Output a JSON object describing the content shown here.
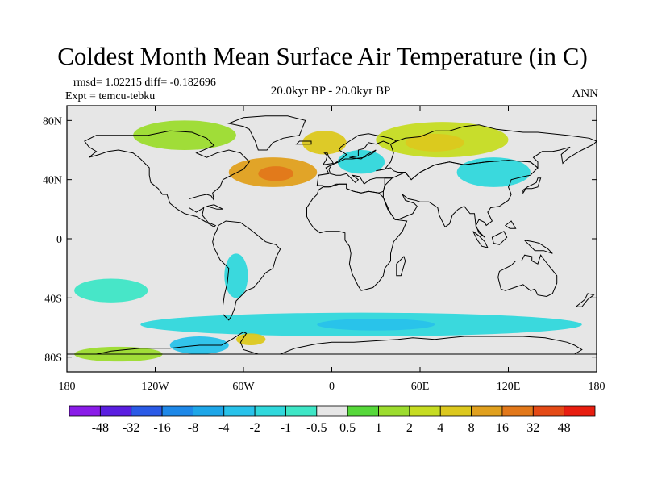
{
  "title": "Coldest Month Mean Surface Air Temperature (in C)",
  "stats_line": "rmsd= 1.02215 diff= -0.182696",
  "expt_line": "Expt = temcu-tebku",
  "subtitle": "20.0kyr BP - 20.0kyr BP",
  "season": "ANN",
  "chart_data": {
    "type": "heatmap",
    "title": "Coldest Month Mean Surface Air Temperature (in C)",
    "subtitle": "20.0kyr BP - 20.0kyr BP",
    "projection": "cylindrical-equidistant",
    "x_range": [
      -180,
      180
    ],
    "y_range": [
      -90,
      90
    ],
    "x_ticks": [
      {
        "value": -180,
        "label": "180"
      },
      {
        "value": -120,
        "label": "120W"
      },
      {
        "value": -60,
        "label": "60W"
      },
      {
        "value": 0,
        "label": "0"
      },
      {
        "value": 60,
        "label": "60E"
      },
      {
        "value": 120,
        "label": "120E"
      },
      {
        "value": 180,
        "label": "180"
      }
    ],
    "y_ticks": [
      {
        "value": 80,
        "label": "80N"
      },
      {
        "value": 40,
        "label": "40N"
      },
      {
        "value": 0,
        "label": "0"
      },
      {
        "value": -40,
        "label": "40S"
      },
      {
        "value": -80,
        "label": "80S"
      }
    ],
    "colorbar": {
      "levels": [
        "-48",
        "-32",
        "-16",
        "-8",
        "-4",
        "-2",
        "-1",
        "-0.5",
        "0.5",
        "1",
        "2",
        "4",
        "8",
        "16",
        "32",
        "48"
      ],
      "colors": [
        "#8a1ce8",
        "#5a1ee0",
        "#2a5ae6",
        "#1e88e8",
        "#1ea6e8",
        "#28c2ea",
        "#30d8dc",
        "#3ee6c6",
        "#e6e6e6",
        "#56d83a",
        "#9cdc2e",
        "#c6dc22",
        "#dcc81e",
        "#e0a01e",
        "#e2781a",
        "#e44a16",
        "#e81e10"
      ]
    },
    "regions": [
      {
        "label": "North Atlantic warm anomaly",
        "bin": 13,
        "lon": -40,
        "lat": 45,
        "dlon": 30,
        "dlat": 10
      },
      {
        "label": "North Atlantic warm anomaly core",
        "bin": 14,
        "lon": -38,
        "lat": 44,
        "dlon": 12,
        "dlat": 5
      },
      {
        "label": "Greenland Sea warm anomaly",
        "bin": 12,
        "lon": -5,
        "lat": 65,
        "dlon": 15,
        "dlat": 8
      },
      {
        "label": "Siberia warm anomaly",
        "bin": 11,
        "lon": 75,
        "lat": 67,
        "dlon": 45,
        "dlat": 12
      },
      {
        "label": "Siberia warm anomaly core",
        "bin": 12,
        "lon": 70,
        "lat": 65,
        "dlon": 20,
        "dlat": 6
      },
      {
        "label": "Arctic Canada warm anomaly",
        "bin": 10,
        "lon": -100,
        "lat": 70,
        "dlon": 35,
        "dlat": 10
      },
      {
        "label": "Europe cold anomaly",
        "bin": 6,
        "lon": 20,
        "lat": 52,
        "dlon": 16,
        "dlat": 8
      },
      {
        "label": "East Asia cold anomaly",
        "bin": 6,
        "lon": 110,
        "lat": 45,
        "dlon": 25,
        "dlat": 10
      },
      {
        "label": "Southern Ocean cold anomaly",
        "bin": 6,
        "lon": 20,
        "lat": -58,
        "dlon": 150,
        "dlat": 8
      },
      {
        "label": "Southern Ocean cold anomaly core",
        "bin": 5,
        "lon": 30,
        "lat": -58,
        "dlon": 40,
        "dlat": 4
      },
      {
        "label": "South Pacific cold anomaly",
        "bin": 7,
        "lon": -150,
        "lat": -35,
        "dlon": 25,
        "dlat": 8
      },
      {
        "label": "Antarctic warm anomaly",
        "bin": 10,
        "lon": -145,
        "lat": -78,
        "dlon": 30,
        "dlat": 5
      },
      {
        "label": "West Antarctic cold anomaly",
        "bin": 5,
        "lon": -90,
        "lat": -72,
        "dlon": 20,
        "dlat": 6
      },
      {
        "label": "South America cold anomaly",
        "bin": 6,
        "lon": -65,
        "lat": -25,
        "dlon": 8,
        "dlat": 15
      },
      {
        "label": "Weddell Sea warm anomaly",
        "bin": 12,
        "lon": -55,
        "lat": -68,
        "dlon": 10,
        "dlat": 4
      }
    ]
  }
}
